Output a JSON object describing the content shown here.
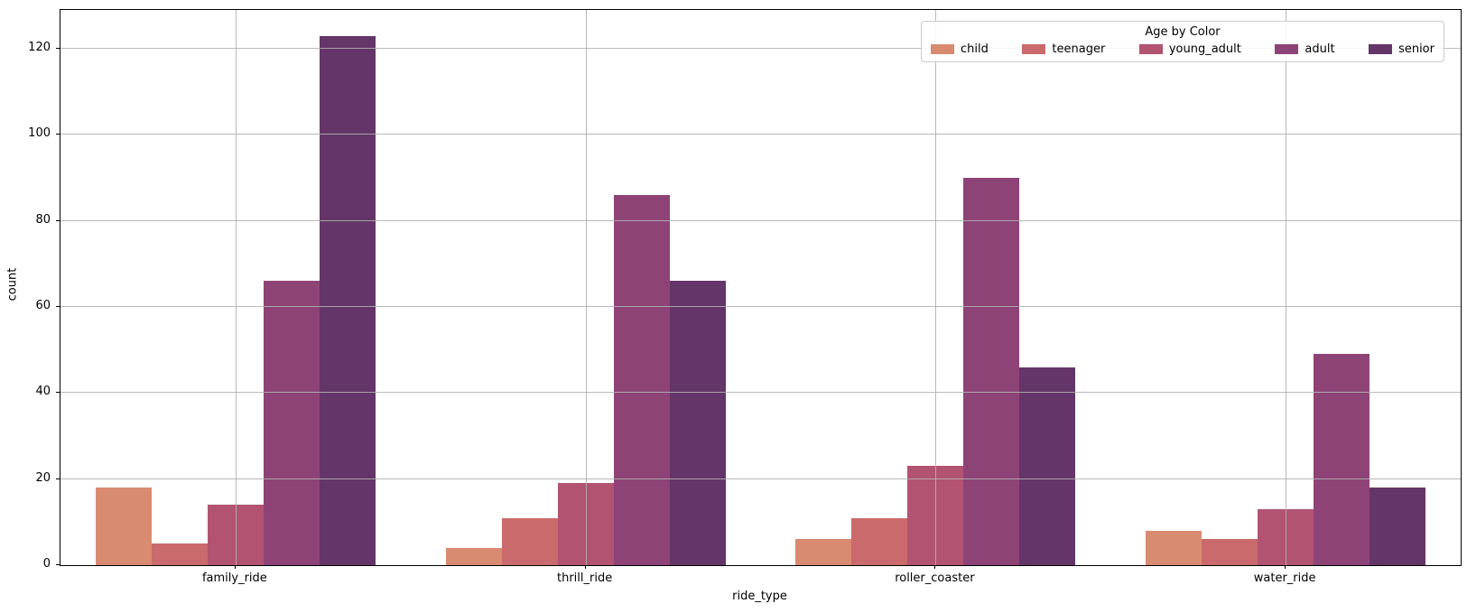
{
  "chart_data": {
    "type": "bar",
    "title": "",
    "xlabel": "ride_type",
    "ylabel": "count",
    "categories": [
      "family_ride",
      "thrill_ride",
      "roller_coaster",
      "water_ride"
    ],
    "series": [
      {
        "name": "child",
        "color": "#d98b72",
        "values": [
          18,
          4,
          6,
          8
        ]
      },
      {
        "name": "teenager",
        "color": "#ca6a6c",
        "values": [
          5,
          11,
          11,
          6
        ]
      },
      {
        "name": "young_adult",
        "color": "#b25372",
        "values": [
          14,
          19,
          23,
          13
        ]
      },
      {
        "name": "adult",
        "color": "#8e4377",
        "values": [
          66,
          86,
          90,
          49
        ]
      },
      {
        "name": "senior",
        "color": "#643568",
        "values": [
          123,
          66,
          46,
          18
        ]
      }
    ],
    "yticks": [
      0,
      20,
      40,
      60,
      80,
      100,
      120
    ],
    "ylim": [
      0,
      129
    ],
    "grid": true,
    "legend": {
      "title": "Age by Color",
      "position": "upper right"
    }
  }
}
